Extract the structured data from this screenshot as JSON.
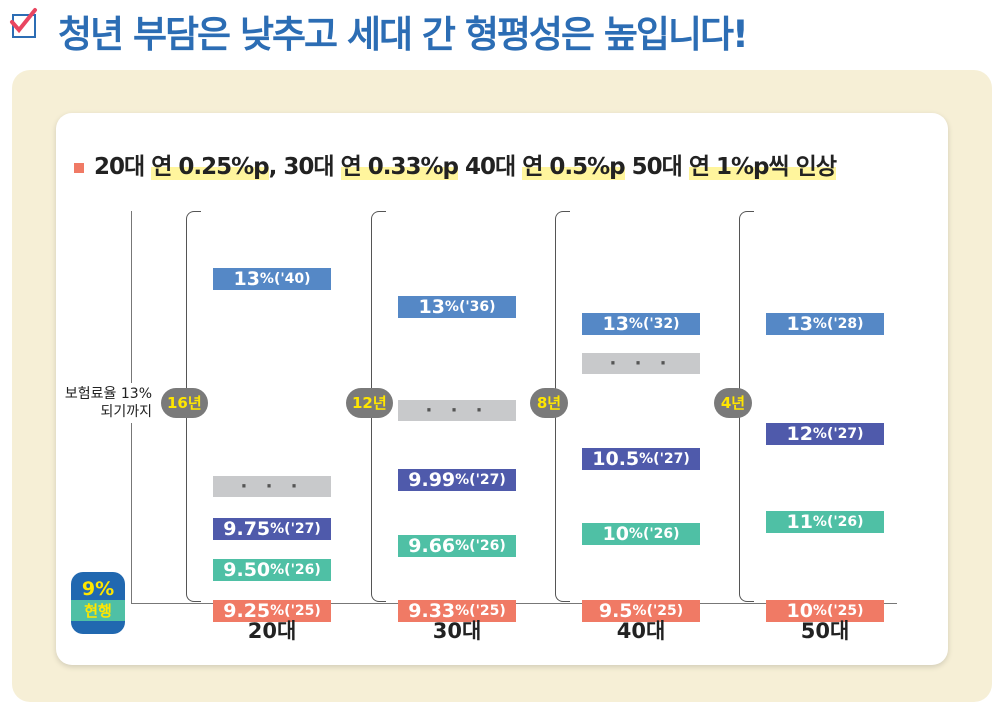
{
  "title": "청년 부담은 낮추고 세대 간 형평성은 높입니다!",
  "subtitle": {
    "p1": "20대",
    "h1": "연 0.25%p",
    "p2": ", 30대",
    "h2": "연 0.33%p",
    "p3": " 40대",
    "h3": "연 0.5%p",
    "p4": " 50대",
    "h4": "연 1%p씩 인상"
  },
  "chart_data": {
    "type": "bar",
    "ylabel": "보험료율 13%되기까지",
    "baseline": {
      "value": "9%",
      "label": "현행"
    },
    "categories": [
      "20대",
      "30대",
      "40대",
      "50대"
    ],
    "groups": [
      {
        "category": "20대",
        "years": "16년",
        "segments": [
          {
            "value": "9.25",
            "year": "('25)"
          },
          {
            "value": "9.50",
            "year": "('26)"
          },
          {
            "value": "9.75",
            "year": "('27)"
          },
          {
            "value": "· · ·",
            "year": ""
          },
          {
            "value": "13",
            "year": "('40)"
          }
        ]
      },
      {
        "category": "30대",
        "years": "12년",
        "segments": [
          {
            "value": "9.33",
            "year": "('25)"
          },
          {
            "value": "9.66",
            "year": "('26)"
          },
          {
            "value": "9.99",
            "year": "('27)"
          },
          {
            "value": "· · ·",
            "year": ""
          },
          {
            "value": "13",
            "year": "('36)"
          }
        ]
      },
      {
        "category": "40대",
        "years": "8년",
        "segments": [
          {
            "value": "9.5",
            "year": "('25)"
          },
          {
            "value": "10",
            "year": "('26)"
          },
          {
            "value": "10.5",
            "year": "('27)"
          },
          {
            "value": "· · ·",
            "year": ""
          },
          {
            "value": "13",
            "year": "('32)"
          }
        ]
      },
      {
        "category": "50대",
        "years": "4년",
        "segments": [
          {
            "value": "10",
            "year": "('25)"
          },
          {
            "value": "11",
            "year": "('26)"
          },
          {
            "value": "12",
            "year": "('27)"
          },
          {
            "value": "13",
            "year": "('28)"
          }
        ]
      }
    ],
    "colors": {
      "13%": "#5588c6",
      "'27": "#4f5aab",
      "'26": "#4fc0a5",
      "'25": "#f07a65",
      "gap": "#c8c9cb"
    }
  }
}
